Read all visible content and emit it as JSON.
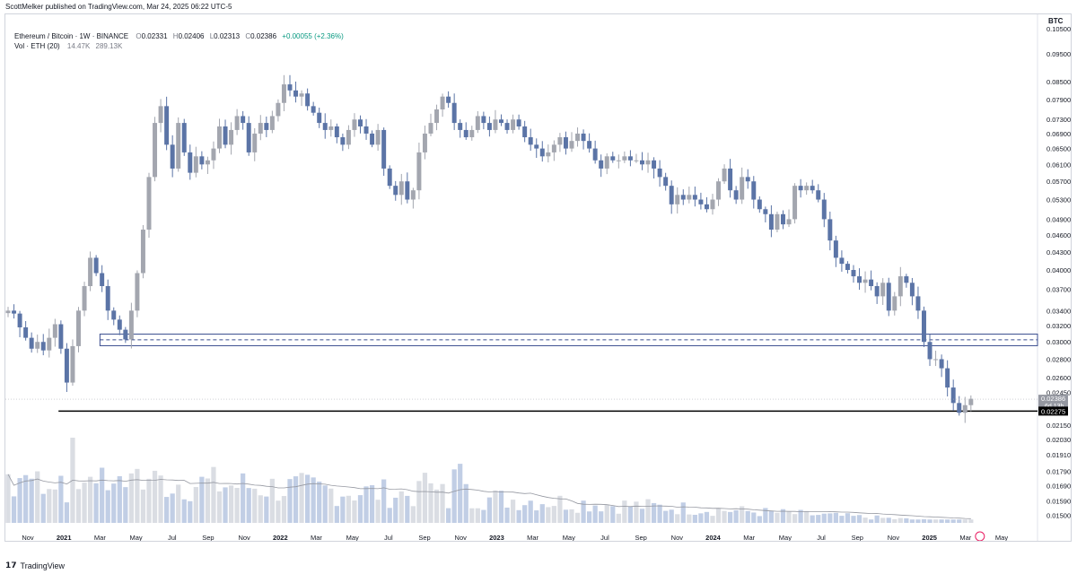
{
  "header": {
    "published": "ScottMelker published on TradingView.com, Mar 24, 2025 06:22 UTC-5"
  },
  "legend": {
    "symbol": "Ethereum / Bitcoin · 1W · BINANCE",
    "o_label": "O",
    "o": "0.02331",
    "h_label": "H",
    "h": "0.02406",
    "l_label": "L",
    "l": "0.02313",
    "c_label": "C",
    "c": "0.02386",
    "change": "+0.00055 (+2.36%)",
    "vol_label": "Vol · ETH (20)",
    "vol": "14.47K",
    "vol_ma": "289.13K"
  },
  "price_axis": {
    "currency": "BTC",
    "ticks": [
      "0.10500",
      "0.09500",
      "0.08500",
      "0.07900",
      "0.07300",
      "0.06900",
      "0.06500",
      "0.06100",
      "0.05700",
      "0.05300",
      "0.04900",
      "0.04600",
      "0.04300",
      "0.04000",
      "0.03700",
      "0.03400",
      "0.03200",
      "0.03000",
      "0.02800",
      "0.02600",
      "0.02450",
      "0.02150",
      "0.02030",
      "0.01910",
      "0.01790",
      "0.01690",
      "0.01590",
      "0.01500"
    ],
    "last_price_label": "0.02386",
    "countdown_label": "6d 13h",
    "support_label": "0.02275"
  },
  "time_axis": {
    "ticks": [
      "Nov",
      "2021",
      "Mar",
      "May",
      "Jul",
      "Sep",
      "Nov",
      "2022",
      "Mar",
      "May",
      "Jul",
      "Sep",
      "Nov",
      "2023",
      "Mar",
      "May",
      "Jul",
      "Sep",
      "Nov",
      "2024",
      "Mar",
      "May",
      "Jul",
      "Sep",
      "Nov",
      "2025",
      "Mar",
      "May"
    ]
  },
  "footer": {
    "brand": "TradingView"
  },
  "colors": {
    "up": "#a3a6af",
    "down": "#5b74a6",
    "zone": "#3a4d8f",
    "support": "#000000",
    "vol_ma": "#9598a1"
  },
  "chart_data": {
    "type": "candlestick",
    "title": "Ethereum / Bitcoin · 1W · BINANCE",
    "interval": "1W",
    "x_range": [
      "2020-11",
      "2025-05"
    ],
    "y_scale": "log",
    "y_range": [
      0.0145,
      0.108
    ],
    "close_series_weekly_approx": [
      0.034,
      0.0336,
      0.0318,
      0.0305,
      0.0292,
      0.03,
      0.029,
      0.0305,
      0.0322,
      0.0292,
      0.0255,
      0.0295,
      0.034,
      0.0375,
      0.042,
      0.0395,
      0.0375,
      0.034,
      0.0328,
      0.0315,
      0.0303,
      0.034,
      0.0395,
      0.047,
      0.058,
      0.072,
      0.077,
      0.066,
      0.06,
      0.072,
      0.064,
      0.059,
      0.063,
      0.061,
      0.062,
      0.065,
      0.071,
      0.066,
      0.07,
      0.074,
      0.072,
      0.064,
      0.069,
      0.072,
      0.07,
      0.074,
      0.078,
      0.084,
      0.082,
      0.08,
      0.081,
      0.077,
      0.075,
      0.072,
      0.07,
      0.071,
      0.068,
      0.066,
      0.07,
      0.073,
      0.071,
      0.069,
      0.066,
      0.07,
      0.06,
      0.056,
      0.054,
      0.057,
      0.053,
      0.055,
      0.064,
      0.069,
      0.072,
      0.076,
      0.08,
      0.078,
      0.072,
      0.07,
      0.068,
      0.07,
      0.074,
      0.072,
      0.07,
      0.073,
      0.072,
      0.07,
      0.073,
      0.071,
      0.068,
      0.066,
      0.065,
      0.063,
      0.064,
      0.066,
      0.068,
      0.065,
      0.067,
      0.069,
      0.067,
      0.065,
      0.062,
      0.06,
      0.063,
      0.062,
      0.062,
      0.063,
      0.062,
      0.062,
      0.061,
      0.062,
      0.06,
      0.058,
      0.056,
      0.052,
      0.054,
      0.053,
      0.054,
      0.053,
      0.052,
      0.051,
      0.053,
      0.057,
      0.06,
      0.055,
      0.053,
      0.058,
      0.057,
      0.053,
      0.051,
      0.05,
      0.047,
      0.05,
      0.048,
      0.049,
      0.056,
      0.055,
      0.056,
      0.055,
      0.053,
      0.049,
      0.045,
      0.042,
      0.041,
      0.04,
      0.039,
      0.038,
      0.0385,
      0.0375,
      0.036,
      0.038,
      0.034,
      0.036,
      0.039,
      0.038,
      0.036,
      0.034,
      0.03,
      0.028,
      0.028,
      0.027,
      0.025,
      0.0235,
      0.0226,
      0.0233,
      0.0239
    ],
    "horizontal_zone": {
      "from": 0.02955,
      "to": 0.03095,
      "midline": 0.03025,
      "start": "2021-03"
    },
    "support_line": {
      "value": 0.02275,
      "start": "2021-01"
    },
    "last_price": 0.02386,
    "volume_series": "ETH volume, 20-period moving average"
  }
}
